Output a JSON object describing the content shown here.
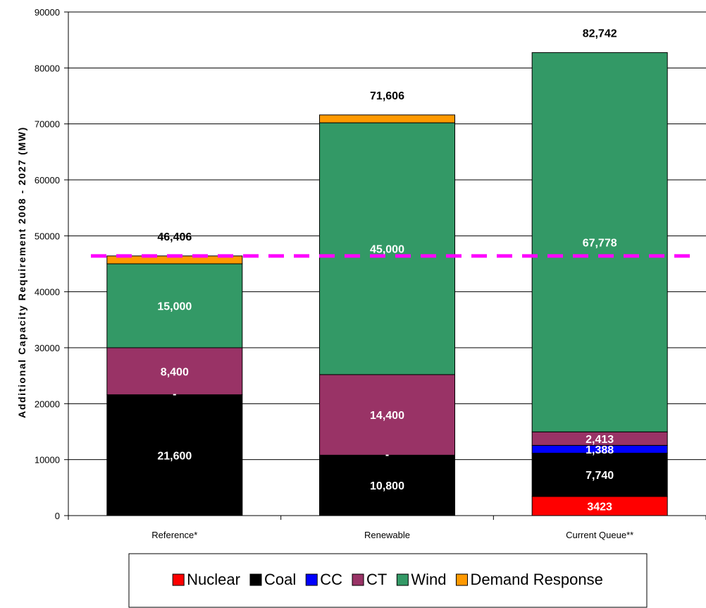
{
  "chart_data": {
    "type": "bar",
    "stacked": true,
    "categories": [
      "Reference*",
      "Renewable",
      "Current Queue**"
    ],
    "series": [
      {
        "name": "Nuclear",
        "color": "#ff0000",
        "values": [
          0,
          0,
          3423
        ]
      },
      {
        "name": "Coal",
        "color": "#000000",
        "values": [
          21600,
          10800,
          7740
        ]
      },
      {
        "name": "CC",
        "color": "#0000ff",
        "values": [
          0,
          0,
          1388
        ]
      },
      {
        "name": "CT",
        "color": "#993366",
        "values": [
          8400,
          14400,
          2413
        ]
      },
      {
        "name": "Wind",
        "color": "#339966",
        "values": [
          15000,
          45000,
          67778
        ]
      },
      {
        "name": "Demand Response",
        "color": "#ff9900",
        "values": [
          1406,
          1406,
          0
        ]
      }
    ],
    "segment_labels": [
      [
        "",
        "21,600",
        "-",
        "8,400",
        "15,000",
        ""
      ],
      [
        "",
        "10,800",
        "-",
        "14,400",
        "45,000",
        ""
      ],
      [
        "3423",
        "7,740",
        "1,388",
        "2,413",
        "67,778",
        ""
      ]
    ],
    "totals": [
      "46,406",
      "71,606",
      "82,742"
    ],
    "reference_line": {
      "value": 46406,
      "color": "#ff00ff",
      "style": "dashed"
    },
    "ylabel": "Additional Capacity Requirement 2008 - 2027 (MW)",
    "xlabel": "",
    "ylim": [
      0,
      90000
    ],
    "yticks": [
      "0",
      "10000",
      "20000",
      "30000",
      "40000",
      "50000",
      "60000",
      "70000",
      "80000",
      "90000"
    ],
    "grid": true,
    "legend_position": "bottom"
  }
}
